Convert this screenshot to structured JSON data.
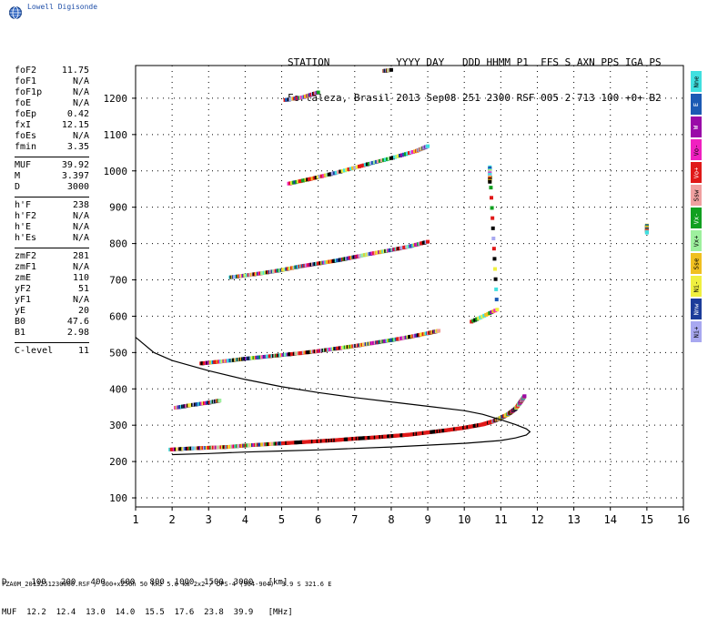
{
  "brand": {
    "name": "Lowell Digisonde",
    "color": "#1f4fa8"
  },
  "header": {
    "line1": "STATION           YYYY DAY   DDD HHMM P1  FFS S AXN PPS IGA PS",
    "line2": "Fortaleza, Brasil 2013 Sep08 251 2300 RSF 005 2 713 100 +0+ B2"
  },
  "params": {
    "group1": [
      {
        "label": "foF2",
        "value": "11.75"
      },
      {
        "label": "foF1",
        "value": "N/A"
      },
      {
        "label": "foF1p",
        "value": "N/A"
      },
      {
        "label": "foE",
        "value": "N/A"
      },
      {
        "label": "foEp",
        "value": "0.42"
      },
      {
        "label": "fxI",
        "value": "12.15"
      },
      {
        "label": "foEs",
        "value": "N/A"
      },
      {
        "label": "fmin",
        "value": "3.35"
      }
    ],
    "group2": [
      {
        "label": "MUF",
        "value": "39.92"
      },
      {
        "label": "M",
        "value": "3.397"
      },
      {
        "label": "D",
        "value": "3000"
      }
    ],
    "group3": [
      {
        "label": "h'F",
        "value": "238"
      },
      {
        "label": "h'F2",
        "value": "N/A"
      },
      {
        "label": "h'E",
        "value": "N/A"
      },
      {
        "label": "h'Es",
        "value": "N/A"
      }
    ],
    "group4": [
      {
        "label": "zmF2",
        "value": "281"
      },
      {
        "label": "zmF1",
        "value": "N/A"
      },
      {
        "label": "zmE",
        "value": "110"
      },
      {
        "label": "yF2",
        "value": "51"
      },
      {
        "label": "yF1",
        "value": "N/A"
      },
      {
        "label": "yE",
        "value": "20"
      },
      {
        "label": "B0",
        "value": "47.6"
      },
      {
        "label": "B1",
        "value": "2.98"
      }
    ],
    "group5": [
      {
        "label": "C-level",
        "value": "11"
      }
    ]
  },
  "legend": [
    {
      "label": "Nne",
      "color": "#40e0e0"
    },
    {
      "label": "E",
      "color": "#1c5ab4"
    },
    {
      "label": "W",
      "color": "#9a0aa8"
    },
    {
      "label": "Vo-",
      "color": "#f020c0"
    },
    {
      "label": "Vo+",
      "color": "#e01818"
    },
    {
      "label": "Ssw",
      "color": "#f0a0a0"
    },
    {
      "label": "Vx-",
      "color": "#10a020"
    },
    {
      "label": "Vx+",
      "color": "#9ef09e"
    },
    {
      "label": "Sse",
      "color": "#f0c020"
    },
    {
      "label": "Ni-",
      "color": "#f0f040"
    },
    {
      "label": "Nnw",
      "color": "#1c3c9a"
    },
    {
      "label": "Ni+",
      "color": "#a8a8f0"
    }
  ],
  "footer": {
    "line1": "D     100   200   400   600   800  1000  1500  3000   [km]",
    "line2": "MUF  12.2  12.4  13.0  14.0  15.5  17.6  23.8  39.9   [MHz]",
    "filename": "FZA0M_2013251230000.RSF / 300+x256h 50 kHz 5.0 km 2x2 / DPS-4 (904-904)  3.9 S 321.6 E"
  },
  "chart_data": {
    "type": "scatter",
    "xlim": [
      1,
      16
    ],
    "ylim": [
      75,
      1290
    ],
    "xticks": [
      "1",
      "2",
      "3",
      "4",
      "5",
      "6",
      "7",
      "8",
      "9",
      "10",
      "11",
      "12",
      "13",
      "14",
      "15",
      "16"
    ],
    "yticks": [
      "100",
      "200",
      "300",
      "400",
      "500",
      "600",
      "700",
      "800",
      "900",
      "1000",
      "1100",
      "1200"
    ],
    "grid": "dotted",
    "traces": [
      {
        "color": "mix",
        "points": [
          [
            1.95,
            233
          ],
          [
            2.5,
            236
          ],
          [
            3.0,
            238
          ],
          [
            3.5,
            240
          ],
          [
            4.0,
            244
          ],
          [
            4.5,
            247
          ],
          [
            5.0,
            250
          ],
          [
            5.5,
            253
          ],
          [
            6.0,
            256
          ],
          [
            6.5,
            259
          ],
          [
            7.0,
            263
          ],
          [
            7.5,
            266
          ],
          [
            8.0,
            270
          ],
          [
            8.5,
            274
          ],
          [
            9.0,
            280
          ],
          [
            9.5,
            286
          ],
          [
            10.0,
            293
          ],
          [
            10.5,
            302
          ],
          [
            10.8,
            311
          ],
          [
            11.0,
            320
          ],
          [
            11.2,
            330
          ],
          [
            11.4,
            345
          ],
          [
            11.55,
            365
          ],
          [
            11.65,
            380
          ]
        ]
      },
      {
        "color": "mix",
        "points": [
          [
            2.1,
            348
          ],
          [
            2.5,
            355
          ],
          [
            3.0,
            362
          ],
          [
            3.3,
            368
          ]
        ]
      },
      {
        "color": "mix",
        "points": [
          [
            2.8,
            470
          ],
          [
            3.2,
            474
          ],
          [
            3.6,
            478
          ],
          [
            4.0,
            483
          ],
          [
            4.5,
            488
          ],
          [
            5.0,
            493
          ],
          [
            5.5,
            498
          ],
          [
            6.0,
            504
          ],
          [
            6.5,
            511
          ],
          [
            7.0,
            518
          ],
          [
            7.5,
            526
          ],
          [
            8.0,
            534
          ],
          [
            8.5,
            543
          ],
          [
            9.0,
            553
          ],
          [
            9.3,
            560
          ]
        ]
      },
      {
        "color": "mix",
        "points": [
          [
            3.6,
            707
          ],
          [
            4.0,
            712
          ],
          [
            4.5,
            719
          ],
          [
            5.0,
            727
          ],
          [
            5.5,
            737
          ],
          [
            6.0,
            745
          ],
          [
            6.5,
            753
          ],
          [
            7.0,
            763
          ],
          [
            7.5,
            773
          ],
          [
            8.0,
            782
          ],
          [
            8.5,
            792
          ],
          [
            9.0,
            805
          ]
        ]
      },
      {
        "color": "mix",
        "points": [
          [
            5.2,
            965
          ],
          [
            5.8,
            978
          ],
          [
            6.5,
            995
          ],
          [
            7.3,
            1017
          ],
          [
            8.0,
            1035
          ],
          [
            8.7,
            1055
          ],
          [
            9.0,
            1068
          ]
        ]
      },
      {
        "color": "mix",
        "points": [
          [
            5.1,
            1195
          ],
          [
            5.6,
            1203
          ],
          [
            6.0,
            1216
          ],
          [
            7.8,
            1275
          ],
          [
            8.0,
            1278
          ]
        ]
      },
      {
        "color": "mix",
        "points": [
          [
            10.2,
            585
          ],
          [
            10.9,
            618
          ],
          [
            10.7,
            1010
          ],
          [
            10.7,
            970
          ],
          [
            15.0,
            850
          ],
          [
            15.0,
            830
          ]
        ]
      }
    ],
    "profile": {
      "color": "#000000",
      "points": [
        [
          1.0,
          542
        ],
        [
          1.5,
          500
        ],
        [
          2.0,
          478
        ],
        [
          3.0,
          450
        ],
        [
          4.0,
          426
        ],
        [
          5.0,
          406
        ],
        [
          6.0,
          390
        ],
        [
          7.0,
          376
        ],
        [
          8.0,
          364
        ],
        [
          9.0,
          352
        ],
        [
          10.0,
          340
        ],
        [
          10.5,
          330
        ],
        [
          11.0,
          315
        ],
        [
          11.4,
          302
        ],
        [
          11.7,
          290
        ],
        [
          11.8,
          282
        ],
        [
          11.7,
          273
        ],
        [
          11.4,
          265
        ],
        [
          11.0,
          258
        ],
        [
          10.0,
          250
        ],
        [
          9.0,
          245
        ],
        [
          8.0,
          240
        ],
        [
          7.0,
          236
        ],
        [
          6.0,
          232
        ],
        [
          5.0,
          229
        ],
        [
          4.0,
          226
        ],
        [
          3.0,
          222
        ],
        [
          2.0,
          219
        ]
      ]
    }
  }
}
